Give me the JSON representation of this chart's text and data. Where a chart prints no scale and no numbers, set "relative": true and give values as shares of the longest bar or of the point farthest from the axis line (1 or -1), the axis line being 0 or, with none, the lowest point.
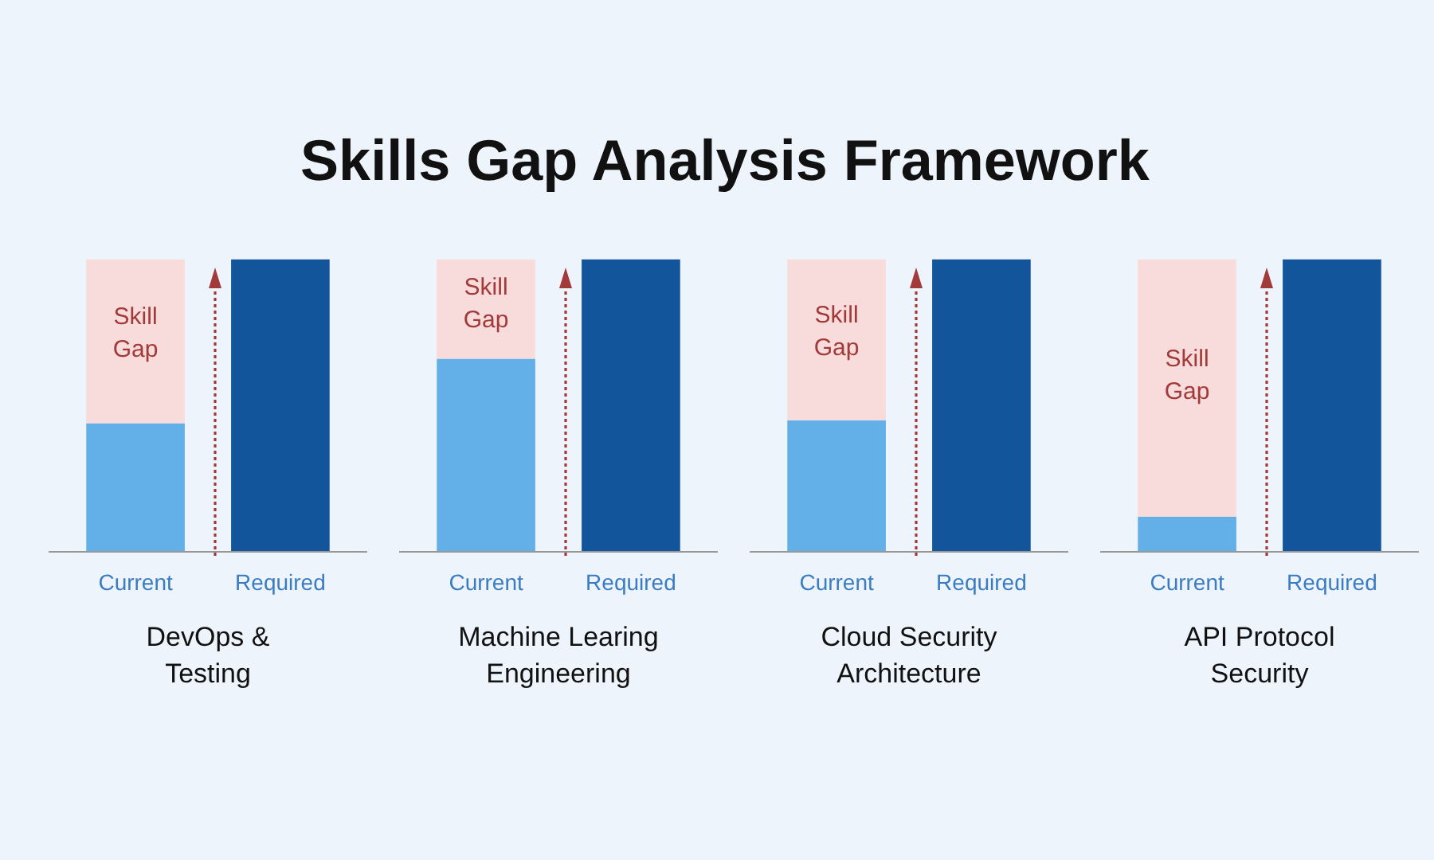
{
  "chart_data": [
    {
      "type": "bar",
      "title": "Skills Gap Analysis Framework",
      "xlabel": "DevOps & Testing",
      "categories": [
        "Current",
        "Required"
      ],
      "relative": true,
      "stacked": true,
      "series": [
        {
          "colors": [
            "#63b0e8",
            "#12559b"
          ],
          "values": [
            0.44,
            1.0
          ]
        },
        {
          "color": "#f8dcdc",
          "values": [
            0.56,
            null
          ]
        }
      ],
      "annotations": [
        "Skill Gap"
      ]
    },
    {
      "type": "bar",
      "xlabel": "Machine Learing Engineering",
      "categories": [
        "Current",
        "Required"
      ],
      "relative": true,
      "stacked": true,
      "series": [
        {
          "colors": [
            "#63b0e8",
            "#12559b"
          ],
          "values": [
            0.66,
            1.0
          ]
        },
        {
          "color": "#f8dcdc",
          "values": [
            0.34,
            null
          ]
        }
      ],
      "annotations": [
        "Skill Gap"
      ]
    },
    {
      "type": "bar",
      "xlabel": "Cloud Security Architecture",
      "categories": [
        "Current",
        "Required"
      ],
      "relative": true,
      "stacked": true,
      "series": [
        {
          "colors": [
            "#63b0e8",
            "#12559b"
          ],
          "values": [
            0.45,
            1.0
          ]
        },
        {
          "color": "#f8dcdc",
          "values": [
            0.55,
            null
          ]
        }
      ],
      "annotations": [
        "Skill Gap"
      ]
    },
    {
      "type": "bar",
      "xlabel": "API Protocol Security",
      "categories": [
        "Current",
        "Required"
      ],
      "relative": true,
      "stacked": true,
      "series": [
        {
          "colors": [
            "#63b0e8",
            "#12559b"
          ],
          "values": [
            0.12,
            1.0
          ]
        },
        {
          "color": "#f8dcdc",
          "values": [
            0.88,
            null
          ]
        }
      ],
      "annotations": [
        "Skill Gap"
      ]
    }
  ]
}
